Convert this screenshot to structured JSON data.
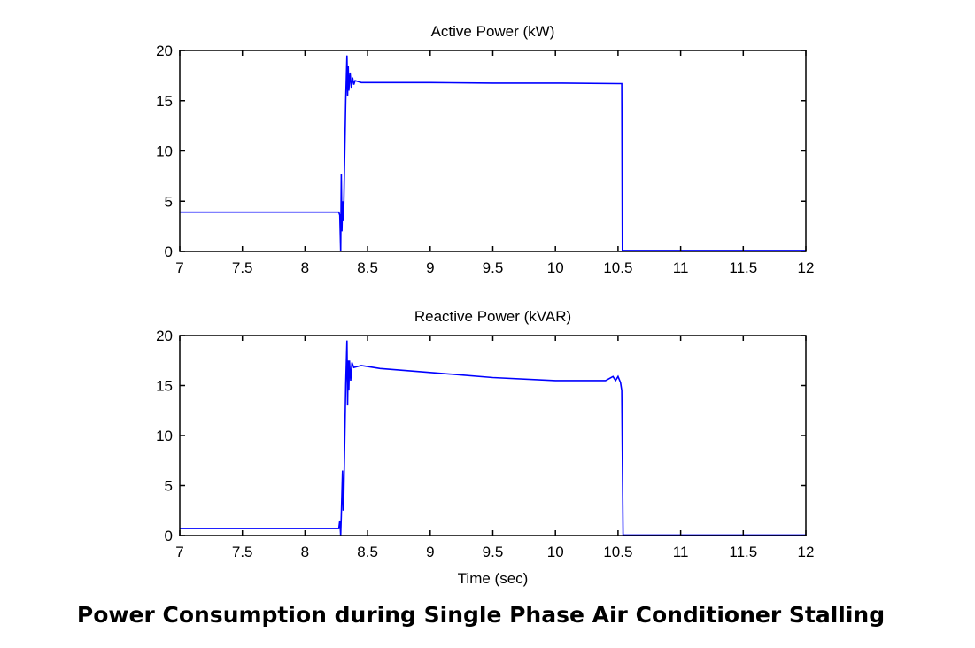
{
  "caption": "Power Consumption during Single Phase Air Conditioner Stalling",
  "chart_data": [
    {
      "type": "line",
      "title": "Active Power (kW)",
      "xlabel": "",
      "ylabel": "",
      "xlim": [
        7,
        12
      ],
      "ylim": [
        0,
        20
      ],
      "xticks": [
        "7",
        "7.5",
        "8",
        "8.5",
        "9",
        "9.5",
        "10",
        "10.5",
        "11",
        "11.5",
        "12"
      ],
      "yticks": [
        "0",
        "5",
        "10",
        "15",
        "20"
      ],
      "color": "#0000ff",
      "series": [
        {
          "name": "Active Power",
          "points": [
            [
              7,
              3.9
            ],
            [
              8.27,
              3.9
            ],
            [
              8.278,
              3.6
            ],
            [
              8.285,
              0
            ],
            [
              8.29,
              7.7
            ],
            [
              8.295,
              2
            ],
            [
              8.3,
              5
            ],
            [
              8.305,
              3
            ],
            [
              8.31,
              4.5
            ],
            [
              8.325,
              15
            ],
            [
              8.335,
              19.5
            ],
            [
              8.34,
              15.5
            ],
            [
              8.345,
              18.5
            ],
            [
              8.35,
              16
            ],
            [
              8.36,
              17.8
            ],
            [
              8.37,
              16.3
            ],
            [
              8.38,
              17.3
            ],
            [
              8.39,
              16.6
            ],
            [
              8.4,
              17
            ],
            [
              8.45,
              16.8
            ],
            [
              9,
              16.8
            ],
            [
              9.5,
              16.75
            ],
            [
              10,
              16.75
            ],
            [
              10.5,
              16.7
            ],
            [
              10.53,
              16.7
            ],
            [
              10.535,
              0.1
            ],
            [
              12,
              0.1
            ]
          ]
        }
      ]
    },
    {
      "type": "line",
      "title": "Reactive Power (kVAR)",
      "xlabel": "Time (sec)",
      "ylabel": "",
      "xlim": [
        7,
        12
      ],
      "ylim": [
        0,
        20
      ],
      "xticks": [
        "7",
        "7.5",
        "8",
        "8.5",
        "9",
        "9.5",
        "10",
        "10.5",
        "11",
        "11.5",
        "12"
      ],
      "yticks": [
        "0",
        "5",
        "10",
        "15",
        "20"
      ],
      "color": "#0000ff",
      "series": [
        {
          "name": "Reactive Power",
          "points": [
            [
              7,
              0.7
            ],
            [
              8.27,
              0.7
            ],
            [
              8.278,
              1.5
            ],
            [
              8.285,
              0
            ],
            [
              8.29,
              2
            ],
            [
              8.3,
              6.5
            ],
            [
              8.305,
              2.5
            ],
            [
              8.31,
              4
            ],
            [
              8.325,
              15
            ],
            [
              8.335,
              19.5
            ],
            [
              8.34,
              13
            ],
            [
              8.345,
              17.5
            ],
            [
              8.35,
              14.5
            ],
            [
              8.355,
              17.5
            ],
            [
              8.365,
              15.5
            ],
            [
              8.375,
              17.3
            ],
            [
              8.39,
              16.8
            ],
            [
              8.45,
              17
            ],
            [
              8.6,
              16.7
            ],
            [
              9,
              16.3
            ],
            [
              9.5,
              15.8
            ],
            [
              10,
              15.5
            ],
            [
              10.4,
              15.5
            ],
            [
              10.46,
              15.9
            ],
            [
              10.48,
              15.5
            ],
            [
              10.5,
              15.9
            ],
            [
              10.52,
              15.3
            ],
            [
              10.53,
              14.5
            ],
            [
              10.54,
              0.05
            ],
            [
              12,
              0.05
            ]
          ]
        }
      ]
    }
  ]
}
